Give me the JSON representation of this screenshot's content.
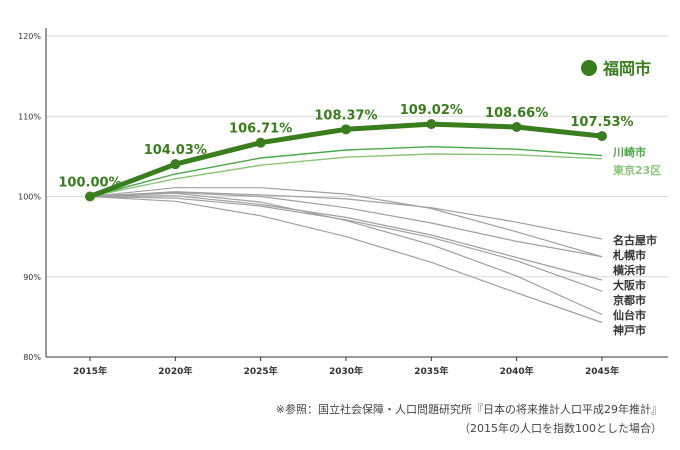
{
  "chart_data": {
    "type": "line",
    "x": [
      "2015年",
      "2020年",
      "2025年",
      "2030年",
      "2035年",
      "2040年",
      "2045年"
    ],
    "ylim": [
      80,
      120
    ],
    "yticks": [
      80,
      90,
      100,
      110,
      120
    ],
    "ytick_labels": [
      "80%",
      "90%",
      "100%",
      "110%",
      "120%"
    ],
    "legend": "福岡市",
    "highlight": {
      "name": "福岡市",
      "color": "#3a7d1e",
      "values": [
        100.0,
        104.03,
        106.71,
        108.37,
        109.02,
        108.66,
        107.53
      ],
      "labels": [
        "100.00%",
        "104.03%",
        "106.71%",
        "108.37%",
        "109.02%",
        "108.66%",
        "107.53%"
      ]
    },
    "green_series": [
      {
        "name": "川崎市",
        "color": "#4aa84a",
        "values": [
          100.0,
          102.8,
          104.8,
          105.8,
          106.2,
          105.9,
          105.1
        ]
      },
      {
        "name": "東京23区",
        "color": "#8dc47a",
        "values": [
          100.0,
          102.2,
          103.9,
          104.9,
          105.3,
          105.2,
          104.7
        ]
      }
    ],
    "gray_series": [
      {
        "name": "名古屋市",
        "values": [
          100.0,
          100.6,
          100.2,
          99.7,
          98.6,
          96.8,
          94.7
        ]
      },
      {
        "name": "札幌市",
        "values": [
          100.0,
          101.1,
          101.1,
          100.3,
          98.5,
          95.6,
          92.5
        ]
      },
      {
        "name": "横浜市",
        "values": [
          100.0,
          100.5,
          100.0,
          98.6,
          96.7,
          94.4,
          92.5
        ]
      },
      {
        "name": "大阪市",
        "values": [
          100.0,
          100.1,
          99.0,
          97.4,
          95.2,
          92.4,
          89.6
        ]
      },
      {
        "name": "京都市",
        "values": [
          100.0,
          99.8,
          98.8,
          97.1,
          94.9,
          92.0,
          88.2
        ]
      },
      {
        "name": "仙台市",
        "values": [
          100.0,
          100.4,
          99.3,
          97.0,
          94.0,
          90.1,
          85.3
        ]
      },
      {
        "name": "神戸市",
        "values": [
          100.0,
          99.4,
          97.6,
          95.0,
          91.8,
          88.0,
          84.3
        ]
      }
    ],
    "gray_color": "#a0a0a0"
  },
  "notes": {
    "line1": "※参照：国立社会保障・人口問題研究所『日本の将来推計人口平成29年推計』",
    "line2": "（2015年の人口を指数100とした場合）"
  }
}
